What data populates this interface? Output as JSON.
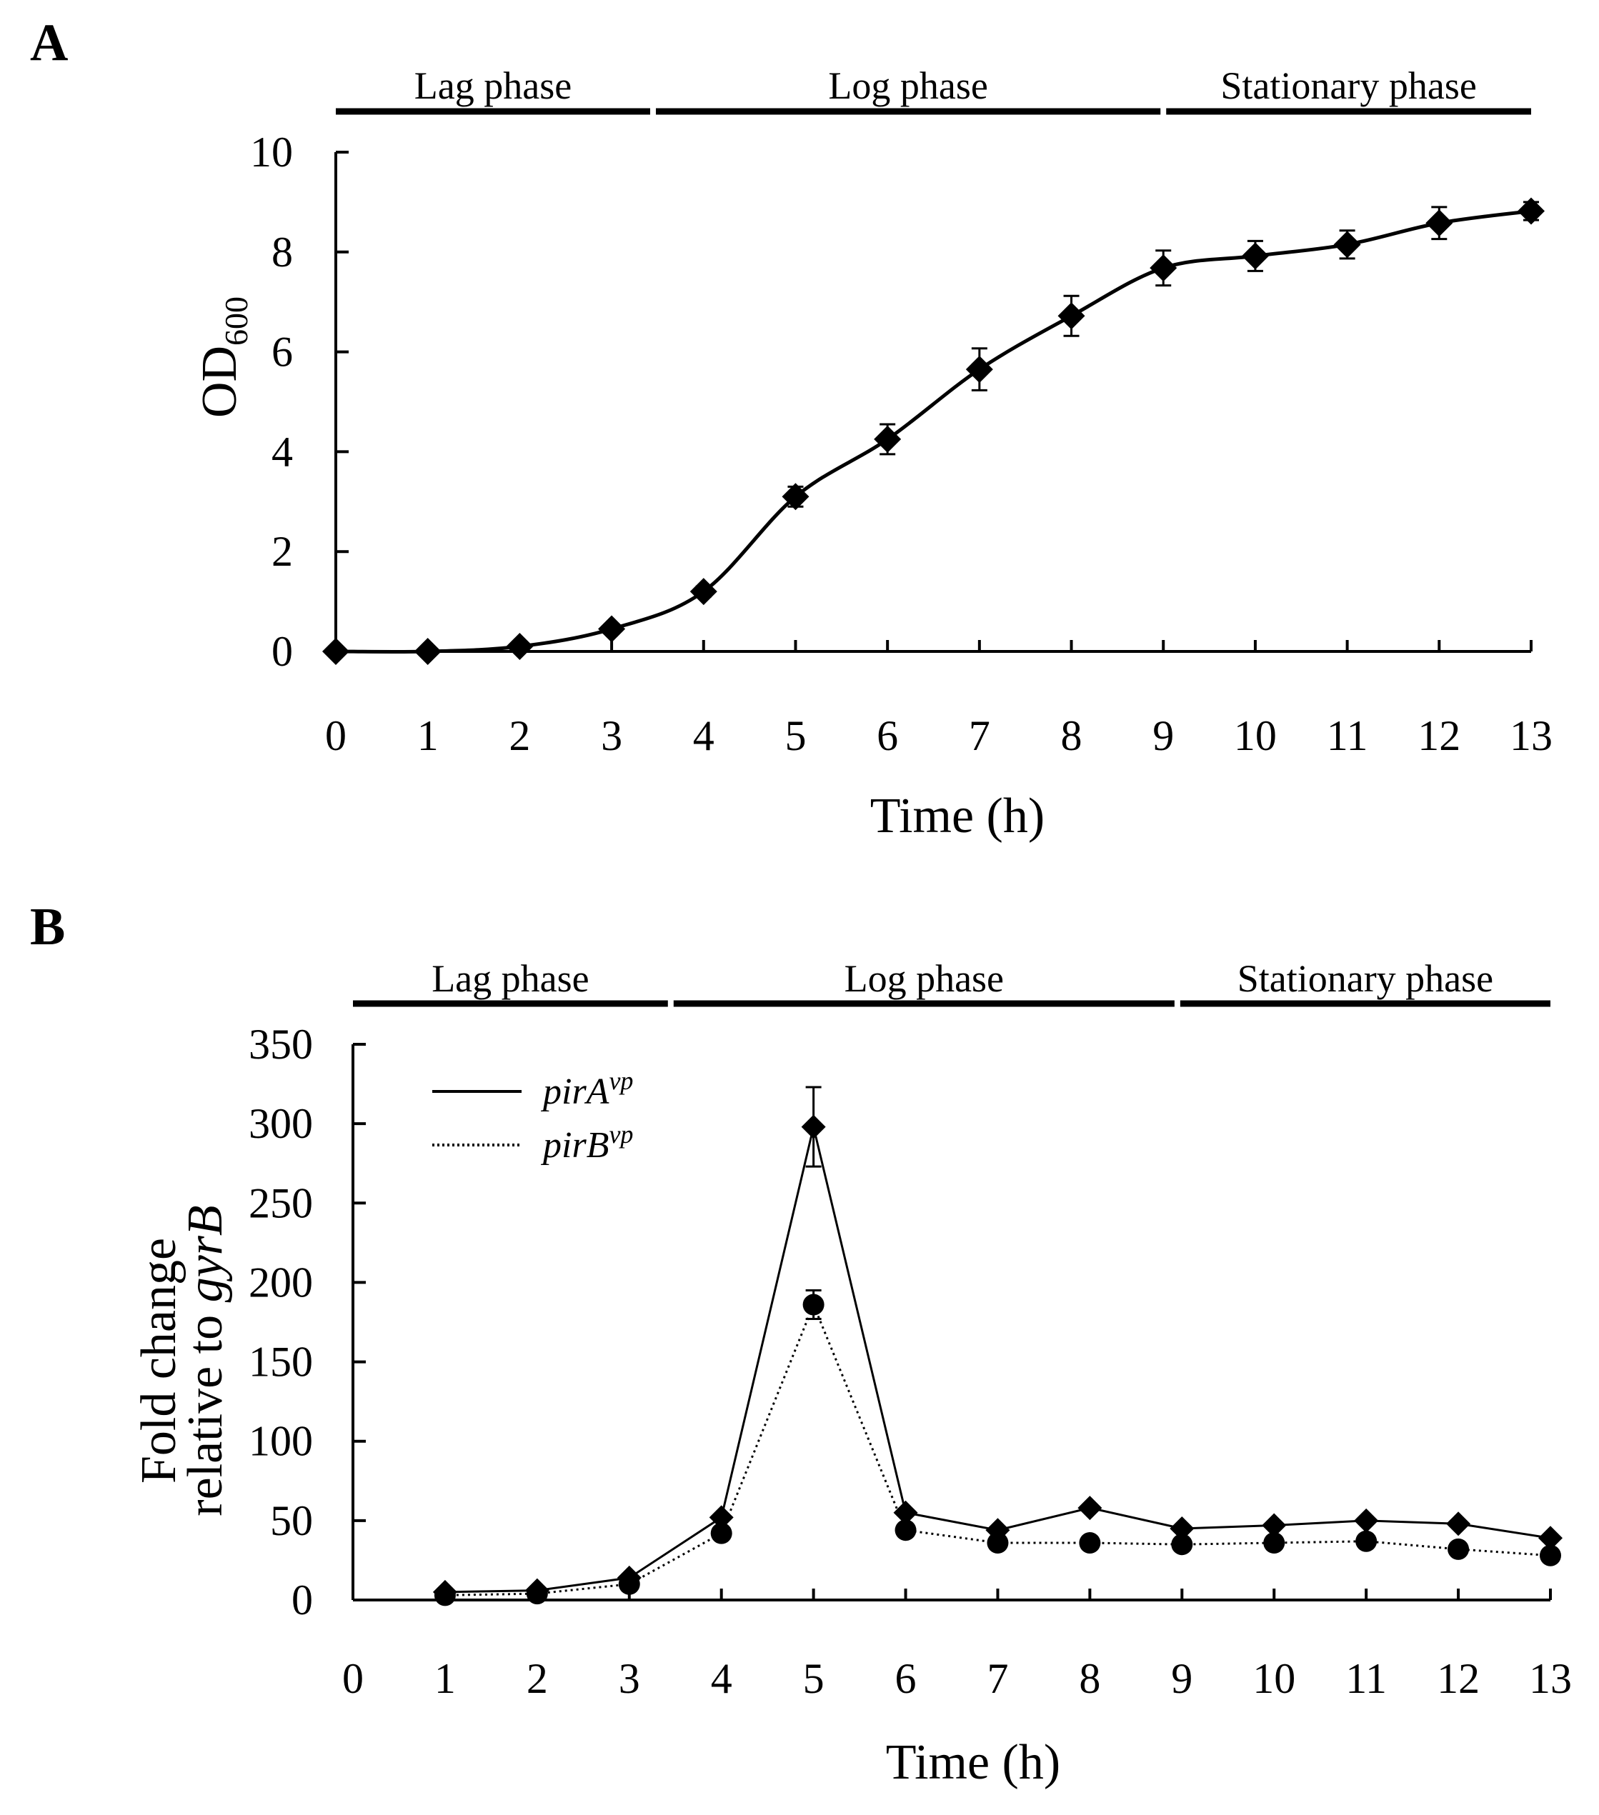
{
  "chart_data": [
    {
      "panel_letter": "A",
      "type": "line",
      "phases": [
        {
          "label": "Lag phase",
          "start": 0,
          "end": 3.45
        },
        {
          "label": "Log phase",
          "start": 3.45,
          "end": 9.0
        },
        {
          "label": "Stationary phase",
          "start": 9.0,
          "end": 13.0
        }
      ],
      "x": [
        0,
        1,
        2,
        3,
        4,
        5,
        6,
        7,
        8,
        9,
        10,
        11,
        12,
        13
      ],
      "x_ticks": [
        0,
        1,
        2,
        3,
        4,
        5,
        6,
        7,
        8,
        9,
        10,
        11,
        12,
        13
      ],
      "xlim": [
        0,
        13
      ],
      "y_ticks": [
        0,
        2,
        4,
        6,
        8,
        10
      ],
      "ylim": [
        0,
        10
      ],
      "xlabel": "Time (h)",
      "ylabel": {
        "main": "OD",
        "sub": "600"
      },
      "series": [
        {
          "marker": "diamond",
          "line": "solid",
          "values": [
            0,
            0,
            0.1,
            0.45,
            1.2,
            3.1,
            4.25,
            5.65,
            6.72,
            7.68,
            7.92,
            8.15,
            8.58,
            8.82
          ],
          "errors": [
            0,
            0,
            0.05,
            0.08,
            0.1,
            0.2,
            0.3,
            0.42,
            0.4,
            0.35,
            0.3,
            0.28,
            0.32,
            0.18
          ]
        }
      ],
      "color": "#000000"
    },
    {
      "panel_letter": "B",
      "type": "line",
      "phases": [
        {
          "label": "Lag phase",
          "start": 0,
          "end": 3.45
        },
        {
          "label": "Log phase",
          "start": 3.45,
          "end": 8.95
        },
        {
          "label": "Stationary phase",
          "start": 8.95,
          "end": 13.0
        }
      ],
      "x": [
        1,
        2,
        3,
        4,
        5,
        6,
        7,
        8,
        9,
        10,
        11,
        12,
        13
      ],
      "x_ticks": [
        0,
        1,
        2,
        3,
        4,
        5,
        6,
        7,
        8,
        9,
        10,
        11,
        12,
        13
      ],
      "xlim": [
        0,
        13
      ],
      "y_ticks": [
        0,
        50,
        100,
        150,
        200,
        250,
        300,
        350
      ],
      "ylim": [
        0,
        350
      ],
      "xlabel": "Time (h)",
      "ylabel": {
        "line1": "Fold change",
        "line2_prefix": "relative to ",
        "line2_italic": "gyrB"
      },
      "series": [
        {
          "name_main": "pirA",
          "name_sup": "vp",
          "marker": "diamond",
          "line": "solid",
          "values": [
            5,
            6,
            14,
            52,
            298,
            55,
            44,
            58,
            45,
            47,
            50,
            48,
            39
          ],
          "errors": [
            0,
            0,
            0,
            0,
            25,
            0,
            0,
            0,
            0,
            0,
            0,
            0,
            0
          ]
        },
        {
          "name_main": "pirB",
          "name_sup": "vp",
          "marker": "circle",
          "line": "dotted",
          "values": [
            3,
            4,
            10,
            42,
            186,
            44,
            36,
            36,
            35,
            36,
            37,
            32,
            28
          ],
          "errors": [
            0,
            0,
            0,
            0,
            9,
            0,
            0,
            0,
            0,
            0,
            0,
            0,
            0
          ]
        }
      ],
      "legend_position": "top-left",
      "color": "#000000"
    }
  ]
}
